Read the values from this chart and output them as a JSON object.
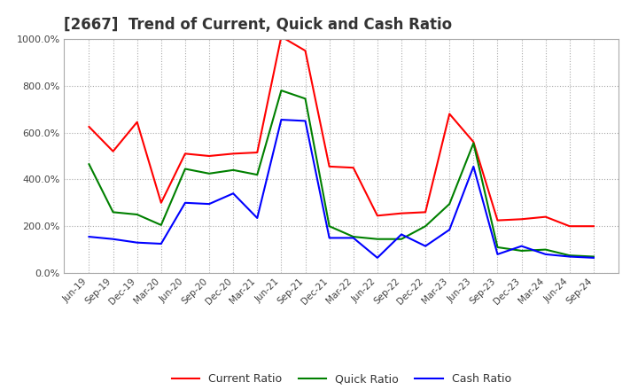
{
  "title": "[2667]  Trend of Current, Quick and Cash Ratio",
  "title_fontsize": 12,
  "ylim": [
    0,
    1000
  ],
  "yticks": [
    0,
    200,
    400,
    600,
    800,
    1000
  ],
  "ytick_labels": [
    "0.0%",
    "200.0%",
    "400.0%",
    "600.0%",
    "800.0%",
    "1000.0%"
  ],
  "background_color": "#ffffff",
  "plot_bg_color": "#ffffff",
  "grid_color": "#aaaaaa",
  "labels": [
    "Jun-19",
    "Sep-19",
    "Dec-19",
    "Mar-20",
    "Jun-20",
    "Sep-20",
    "Dec-20",
    "Mar-21",
    "Jun-21",
    "Sep-21",
    "Dec-21",
    "Mar-22",
    "Jun-22",
    "Sep-22",
    "Dec-22",
    "Mar-23",
    "Jun-23",
    "Sep-23",
    "Dec-23",
    "Mar-24",
    "Jun-24",
    "Sep-24"
  ],
  "current_ratio": [
    625,
    520,
    645,
    300,
    510,
    500,
    510,
    515,
    1010,
    950,
    455,
    450,
    245,
    255,
    260,
    680,
    560,
    225,
    230,
    240,
    200,
    200
  ],
  "quick_ratio": [
    465,
    260,
    250,
    205,
    445,
    425,
    440,
    420,
    780,
    745,
    200,
    155,
    145,
    145,
    200,
    295,
    555,
    110,
    95,
    100,
    75,
    70
  ],
  "cash_ratio": [
    155,
    145,
    130,
    125,
    300,
    295,
    340,
    235,
    655,
    650,
    150,
    150,
    65,
    165,
    115,
    185,
    455,
    80,
    115,
    80,
    70,
    65
  ],
  "current_color": "#ff0000",
  "quick_color": "#008000",
  "cash_color": "#0000ff",
  "legend_labels": [
    "Current Ratio",
    "Quick Ratio",
    "Cash Ratio"
  ],
  "line_width": 1.5
}
